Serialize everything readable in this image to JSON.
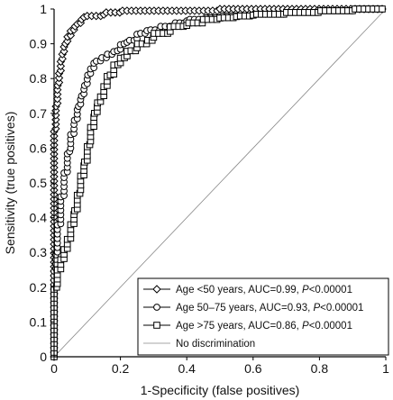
{
  "chart_data": {
    "type": "line",
    "title": "",
    "xlabel": "1-Specificity (false positives)",
    "ylabel": "Sensitivity (true positives)",
    "xlim": [
      0,
      1
    ],
    "ylim": [
      0,
      1
    ],
    "x_ticks": [
      "0",
      "0.2",
      "0.4",
      "0.6",
      "0.8",
      "1"
    ],
    "y_ticks": [
      "0",
      "0.1",
      "0.2",
      "0.3",
      "0.4",
      "0.5",
      "0.6",
      "0.7",
      "0.8",
      "0.9",
      "1"
    ],
    "grid": false,
    "legend_position": "bottom-right",
    "series": [
      {
        "name": "Age <50 years, AUC=0.99, P<0.00001",
        "legend_parts": [
          "Age <50 years, AUC=0.99, ",
          "P",
          "<0.00001"
        ],
        "marker": "diamond",
        "x": [
          0,
          0,
          0.005,
          0.01,
          0.015,
          0.02,
          0.025,
          0.03,
          0.04,
          0.05,
          0.06,
          0.07,
          0.08,
          0.09,
          0.1,
          0.12,
          0.15,
          0.17,
          0.2,
          0.3,
          0.5,
          0.7,
          0.9,
          1
        ],
        "y": [
          0,
          0.5,
          0.65,
          0.72,
          0.78,
          0.82,
          0.85,
          0.87,
          0.9,
          0.92,
          0.94,
          0.95,
          0.96,
          0.97,
          0.98,
          0.98,
          0.98,
          0.99,
          0.99,
          0.995,
          0.995,
          1,
          1,
          1
        ]
      },
      {
        "name": "Age 50–75 years, AUC=0.93, P<0.00001",
        "legend_parts": [
          "Age 50–75 years, AUC=0.93, ",
          "P",
          "<0.00001"
        ],
        "marker": "circle",
        "x": [
          0,
          0,
          0.005,
          0.01,
          0.02,
          0.03,
          0.04,
          0.05,
          0.06,
          0.07,
          0.08,
          0.09,
          0.1,
          0.11,
          0.12,
          0.14,
          0.16,
          0.18,
          0.2,
          0.22,
          0.25,
          0.28,
          0.32,
          0.36,
          0.4,
          0.45,
          0.5,
          0.6,
          0.7,
          0.8,
          0.9,
          1
        ],
        "y": [
          0,
          0.2,
          0.25,
          0.3,
          0.38,
          0.46,
          0.53,
          0.59,
          0.64,
          0.68,
          0.72,
          0.75,
          0.78,
          0.81,
          0.83,
          0.85,
          0.86,
          0.87,
          0.88,
          0.9,
          0.91,
          0.93,
          0.94,
          0.95,
          0.96,
          0.97,
          0.975,
          0.98,
          0.985,
          0.99,
          0.995,
          1
        ]
      },
      {
        "name": "Age >75 years, AUC=0.86, P<0.00001",
        "legend_parts": [
          "Age >75 years, AUC=0.86, ",
          "P",
          "<0.00001"
        ],
        "marker": "square",
        "x": [
          0,
          0,
          0.01,
          0.02,
          0.03,
          0.04,
          0.05,
          0.06,
          0.07,
          0.08,
          0.09,
          0.1,
          0.11,
          0.12,
          0.13,
          0.14,
          0.15,
          0.16,
          0.18,
          0.2,
          0.22,
          0.25,
          0.28,
          0.3,
          0.35,
          0.4,
          0.45,
          0.5,
          0.55,
          0.6,
          0.7,
          0.8,
          0.9,
          1
        ],
        "y": [
          0,
          0.1,
          0.2,
          0.25,
          0.28,
          0.31,
          0.34,
          0.38,
          0.42,
          0.47,
          0.52,
          0.56,
          0.61,
          0.66,
          0.7,
          0.73,
          0.75,
          0.78,
          0.81,
          0.84,
          0.86,
          0.88,
          0.9,
          0.91,
          0.93,
          0.95,
          0.96,
          0.97,
          0.975,
          0.98,
          0.985,
          0.99,
          0.995,
          1
        ]
      },
      {
        "name": "No discrimination",
        "legend_parts": [
          "No discrimination"
        ],
        "marker": "none",
        "x": [
          0,
          1
        ],
        "y": [
          0,
          1
        ]
      }
    ]
  }
}
